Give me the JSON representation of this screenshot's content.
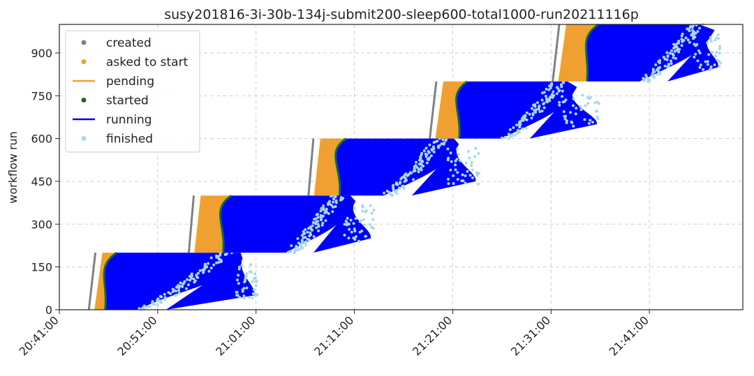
{
  "chart_data": {
    "type": "scatter",
    "title": "susy201816-3i-30b-134j-submit200-sleep600-total1000-run20211116p",
    "xlabel": "",
    "ylabel": "workflow run",
    "x_ticks": [
      "20:41:00",
      "20:51:00",
      "21:01:00",
      "21:11:00",
      "21:21:00",
      "21:31:00",
      "21:41:00"
    ],
    "xlim": [
      "20:41:00",
      "21:50:30"
    ],
    "y_ticks": [
      0,
      150,
      300,
      450,
      600,
      750,
      900
    ],
    "ylim": [
      0,
      1000
    ],
    "grid": true,
    "legend_position": "top-left",
    "legend": [
      {
        "label": "created",
        "marker": "dot",
        "color": "#808080"
      },
      {
        "label": "asked to start",
        "marker": "dot",
        "color": "#f0a030"
      },
      {
        "label": "pending",
        "marker": "line",
        "color": "#f0a030"
      },
      {
        "label": "started",
        "marker": "dot",
        "color": "#1a6b1a"
      },
      {
        "label": "running",
        "marker": "line",
        "color": "#0000ff"
      },
      {
        "label": "finished",
        "marker": "dot",
        "color": "#a8d8e8"
      }
    ],
    "series": [
      {
        "name": "created",
        "points": [
          [
            "20:44:00",
            0
          ],
          [
            "20:44:40",
            200
          ],
          [
            "20:54:10",
            200
          ],
          [
            "20:54:40",
            400
          ],
          [
            "21:06:20",
            400
          ],
          [
            "21:06:50",
            600
          ],
          [
            "21:18:40",
            600
          ],
          [
            "21:19:20",
            800
          ],
          [
            "21:31:10",
            800
          ],
          [
            "21:31:50",
            1000
          ]
        ]
      },
      {
        "name": "asked to start",
        "points": [
          [
            "20:44:50",
            0
          ],
          [
            "20:45:40",
            200
          ],
          [
            "20:55:10",
            200
          ],
          [
            "20:56:00",
            400
          ],
          [
            "21:07:40",
            400
          ],
          [
            "21:08:20",
            600
          ],
          [
            "21:19:40",
            600
          ],
          [
            "21:20:30",
            800
          ],
          [
            "21:31:40",
            800
          ],
          [
            "21:32:30",
            1000
          ]
        ]
      },
      {
        "name": "started",
        "points": [
          [
            "20:46:00",
            0
          ],
          [
            "20:46:50",
            200
          ],
          [
            "20:57:40",
            200
          ],
          [
            "20:58:30",
            400
          ],
          [
            "21:09:30",
            400
          ],
          [
            "21:10:10",
            600
          ],
          [
            "21:21:40",
            600
          ],
          [
            "21:22:30",
            800
          ],
          [
            "21:34:40",
            800
          ],
          [
            "21:35:50",
            1000
          ]
        ]
      },
      {
        "name": "finished",
        "points": [
          [
            "20:49:00",
            0
          ],
          [
            "20:59:50",
            200
          ],
          [
            "21:10:00",
            400
          ],
          [
            "21:20:30",
            600
          ],
          [
            "21:31:10",
            800
          ],
          [
            "21:42:30",
            1000
          ]
        ]
      }
    ],
    "waves": [
      {
        "y_start": 0,
        "y_end": 200,
        "created": [
          "20:44:00",
          "20:44:40"
        ],
        "started": [
          "20:45:40",
          "20:46:50"
        ],
        "finished_head": [
          "20:49:00",
          "20:57:30"
        ],
        "finished_tail": [
          "20:59:00",
          "21:01:10"
        ]
      },
      {
        "y_start": 200,
        "y_end": 400,
        "created": [
          "20:54:10",
          "20:54:40"
        ],
        "started": [
          "20:57:40",
          "20:58:30"
        ],
        "finished_head": [
          "21:04:00",
          "21:09:00"
        ],
        "finished_tail": [
          "21:10:00",
          "21:13:00"
        ]
      },
      {
        "y_start": 400,
        "y_end": 600,
        "created": [
          "21:06:20",
          "21:06:50"
        ],
        "started": [
          "21:09:30",
          "21:10:10"
        ],
        "finished_head": [
          "21:14:00",
          "21:19:30"
        ],
        "finished_tail": [
          "21:20:30",
          "21:23:40"
        ]
      },
      {
        "y_start": 600,
        "y_end": 800,
        "created": [
          "21:18:40",
          "21:19:20"
        ],
        "started": [
          "21:21:40",
          "21:22:30"
        ],
        "finished_head": [
          "21:26:00",
          "21:31:30"
        ],
        "finished_tail": [
          "21:31:50",
          "21:36:00"
        ]
      },
      {
        "y_start": 800,
        "y_end": 1000,
        "created": [
          "21:31:10",
          "21:31:50"
        ],
        "started": [
          "21:34:40",
          "21:35:50"
        ],
        "finished_head": [
          "21:40:00",
          "21:45:30"
        ],
        "finished_tail": [
          "21:45:30",
          "21:48:20"
        ]
      }
    ]
  }
}
